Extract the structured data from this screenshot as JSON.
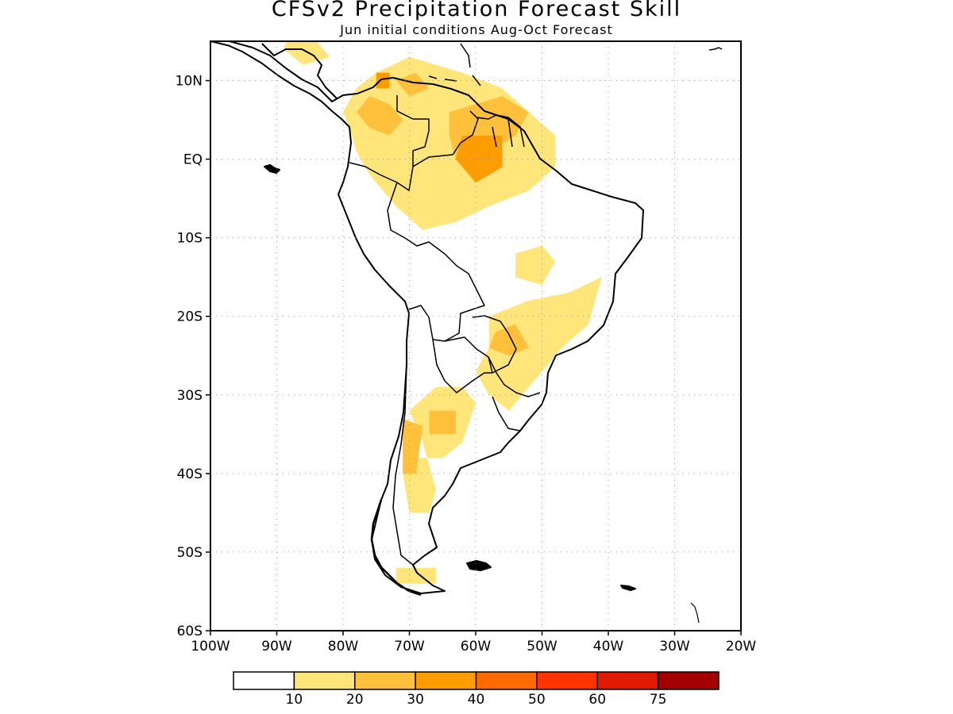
{
  "title": "CFSv2 Precipitation Forecast Skill",
  "subtitle": "Jun initial conditions  Aug-Oct Forecast",
  "map": {
    "lon_range": [
      -100,
      -20
    ],
    "lat_range": [
      -60,
      15
    ],
    "grid": "dotted",
    "lat_ticks": [
      {
        "value": 10,
        "label": "10N"
      },
      {
        "value": 0,
        "label": "EQ"
      },
      {
        "value": -10,
        "label": "10S"
      },
      {
        "value": -20,
        "label": "20S"
      },
      {
        "value": -30,
        "label": "30S"
      },
      {
        "value": -40,
        "label": "40S"
      },
      {
        "value": -50,
        "label": "50S"
      },
      {
        "value": -60,
        "label": "60S"
      }
    ],
    "lon_ticks": [
      {
        "value": -100,
        "label": "100W"
      },
      {
        "value": -90,
        "label": "90W"
      },
      {
        "value": -80,
        "label": "80W"
      },
      {
        "value": -70,
        "label": "70W"
      },
      {
        "value": -60,
        "label": "60W"
      },
      {
        "value": -50,
        "label": "50W"
      },
      {
        "value": -40,
        "label": "40W"
      },
      {
        "value": -30,
        "label": "30W"
      },
      {
        "value": -20,
        "label": "20W"
      }
    ]
  },
  "colorbar": {
    "colors": [
      "#ffffff",
      "#ffe57a",
      "#ffc03c",
      "#ff9c00",
      "#ff6a00",
      "#ff3300",
      "#e01a00",
      "#a40000"
    ],
    "labels": [
      "10",
      "20",
      "30",
      "40",
      "50",
      "60",
      "75"
    ]
  },
  "skill_regions": [
    {
      "level": 1,
      "lonlat": [
        [
          -75,
          11
        ],
        [
          -70,
          13
        ],
        [
          -62,
          11
        ],
        [
          -56,
          9
        ],
        [
          -52,
          6
        ],
        [
          -48,
          3
        ],
        [
          -48,
          -1
        ],
        [
          -52,
          -4
        ],
        [
          -58,
          -6
        ],
        [
          -63,
          -8
        ],
        [
          -68,
          -9
        ],
        [
          -72,
          -6
        ],
        [
          -76,
          -2
        ],
        [
          -78,
          1
        ],
        [
          -79,
          4
        ],
        [
          -80,
          6
        ],
        [
          -78,
          9
        ]
      ]
    },
    {
      "level": 1,
      "lonlat": [
        [
          -54,
          -12
        ],
        [
          -50,
          -11
        ],
        [
          -48,
          -13
        ],
        [
          -50,
          -16
        ],
        [
          -54,
          -15
        ]
      ]
    },
    {
      "level": 1,
      "lonlat": [
        [
          -58,
          -20
        ],
        [
          -52,
          -18
        ],
        [
          -46,
          -17
        ],
        [
          -41,
          -15
        ],
        [
          -43,
          -21
        ],
        [
          -47,
          -24
        ],
        [
          -50,
          -27
        ],
        [
          -53,
          -30
        ],
        [
          -55,
          -32
        ],
        [
          -58,
          -30
        ],
        [
          -60,
          -27
        ],
        [
          -58,
          -24
        ]
      ]
    },
    {
      "level": 1,
      "lonlat": [
        [
          -70,
          -32
        ],
        [
          -66,
          -29
        ],
        [
          -62,
          -29
        ],
        [
          -60,
          -31
        ],
        [
          -62,
          -36
        ],
        [
          -65,
          -38
        ],
        [
          -69,
          -38
        ],
        [
          -71,
          -40
        ],
        [
          -70,
          -45
        ],
        [
          -67,
          -45
        ],
        [
          -66,
          -42
        ],
        [
          -68,
          -36
        ]
      ]
    },
    {
      "level": 1,
      "lonlat": [
        [
          -72,
          -52
        ],
        [
          -66,
          -52
        ],
        [
          -66,
          -54
        ],
        [
          -72,
          -54
        ]
      ]
    },
    {
      "level": 1,
      "lonlat": [
        [
          -88,
          16
        ],
        [
          -84,
          15
        ],
        [
          -82,
          13
        ],
        [
          -86,
          12
        ],
        [
          -89,
          14
        ]
      ]
    },
    {
      "level": 2,
      "lonlat": [
        [
          -76,
          8
        ],
        [
          -73,
          7
        ],
        [
          -71,
          5
        ],
        [
          -73,
          3
        ],
        [
          -76,
          4
        ],
        [
          -78,
          6
        ]
      ]
    },
    {
      "level": 2,
      "lonlat": [
        [
          -64,
          6
        ],
        [
          -56,
          8
        ],
        [
          -52,
          6
        ],
        [
          -54,
          3
        ],
        [
          -58,
          1
        ],
        [
          -61,
          -2
        ],
        [
          -63,
          0
        ],
        [
          -64,
          3
        ]
      ]
    },
    {
      "level": 2,
      "lonlat": [
        [
          -72,
          10
        ],
        [
          -69,
          11
        ],
        [
          -67,
          9
        ],
        [
          -70,
          8
        ]
      ]
    },
    {
      "level": 2,
      "lonlat": [
        [
          -57,
          -22
        ],
        [
          -54,
          -21
        ],
        [
          -52,
          -24
        ],
        [
          -55,
          -25
        ],
        [
          -58,
          -24
        ]
      ]
    },
    {
      "level": 2,
      "lonlat": [
        [
          -67,
          -32
        ],
        [
          -63,
          -32
        ],
        [
          -63,
          -35
        ],
        [
          -67,
          -35
        ]
      ]
    },
    {
      "level": 2,
      "lonlat": [
        [
          -71,
          -33
        ],
        [
          -68,
          -34
        ],
        [
          -69,
          -40
        ],
        [
          -71,
          -40
        ]
      ]
    },
    {
      "level": 3,
      "lonlat": [
        [
          -62,
          3
        ],
        [
          -56,
          3
        ],
        [
          -56,
          -1
        ],
        [
          -60,
          -3
        ],
        [
          -63,
          0
        ]
      ]
    },
    {
      "level": 3,
      "lonlat": [
        [
          -75,
          11
        ],
        [
          -73,
          11
        ],
        [
          -73,
          9
        ],
        [
          -75,
          9
        ]
      ]
    }
  ]
}
